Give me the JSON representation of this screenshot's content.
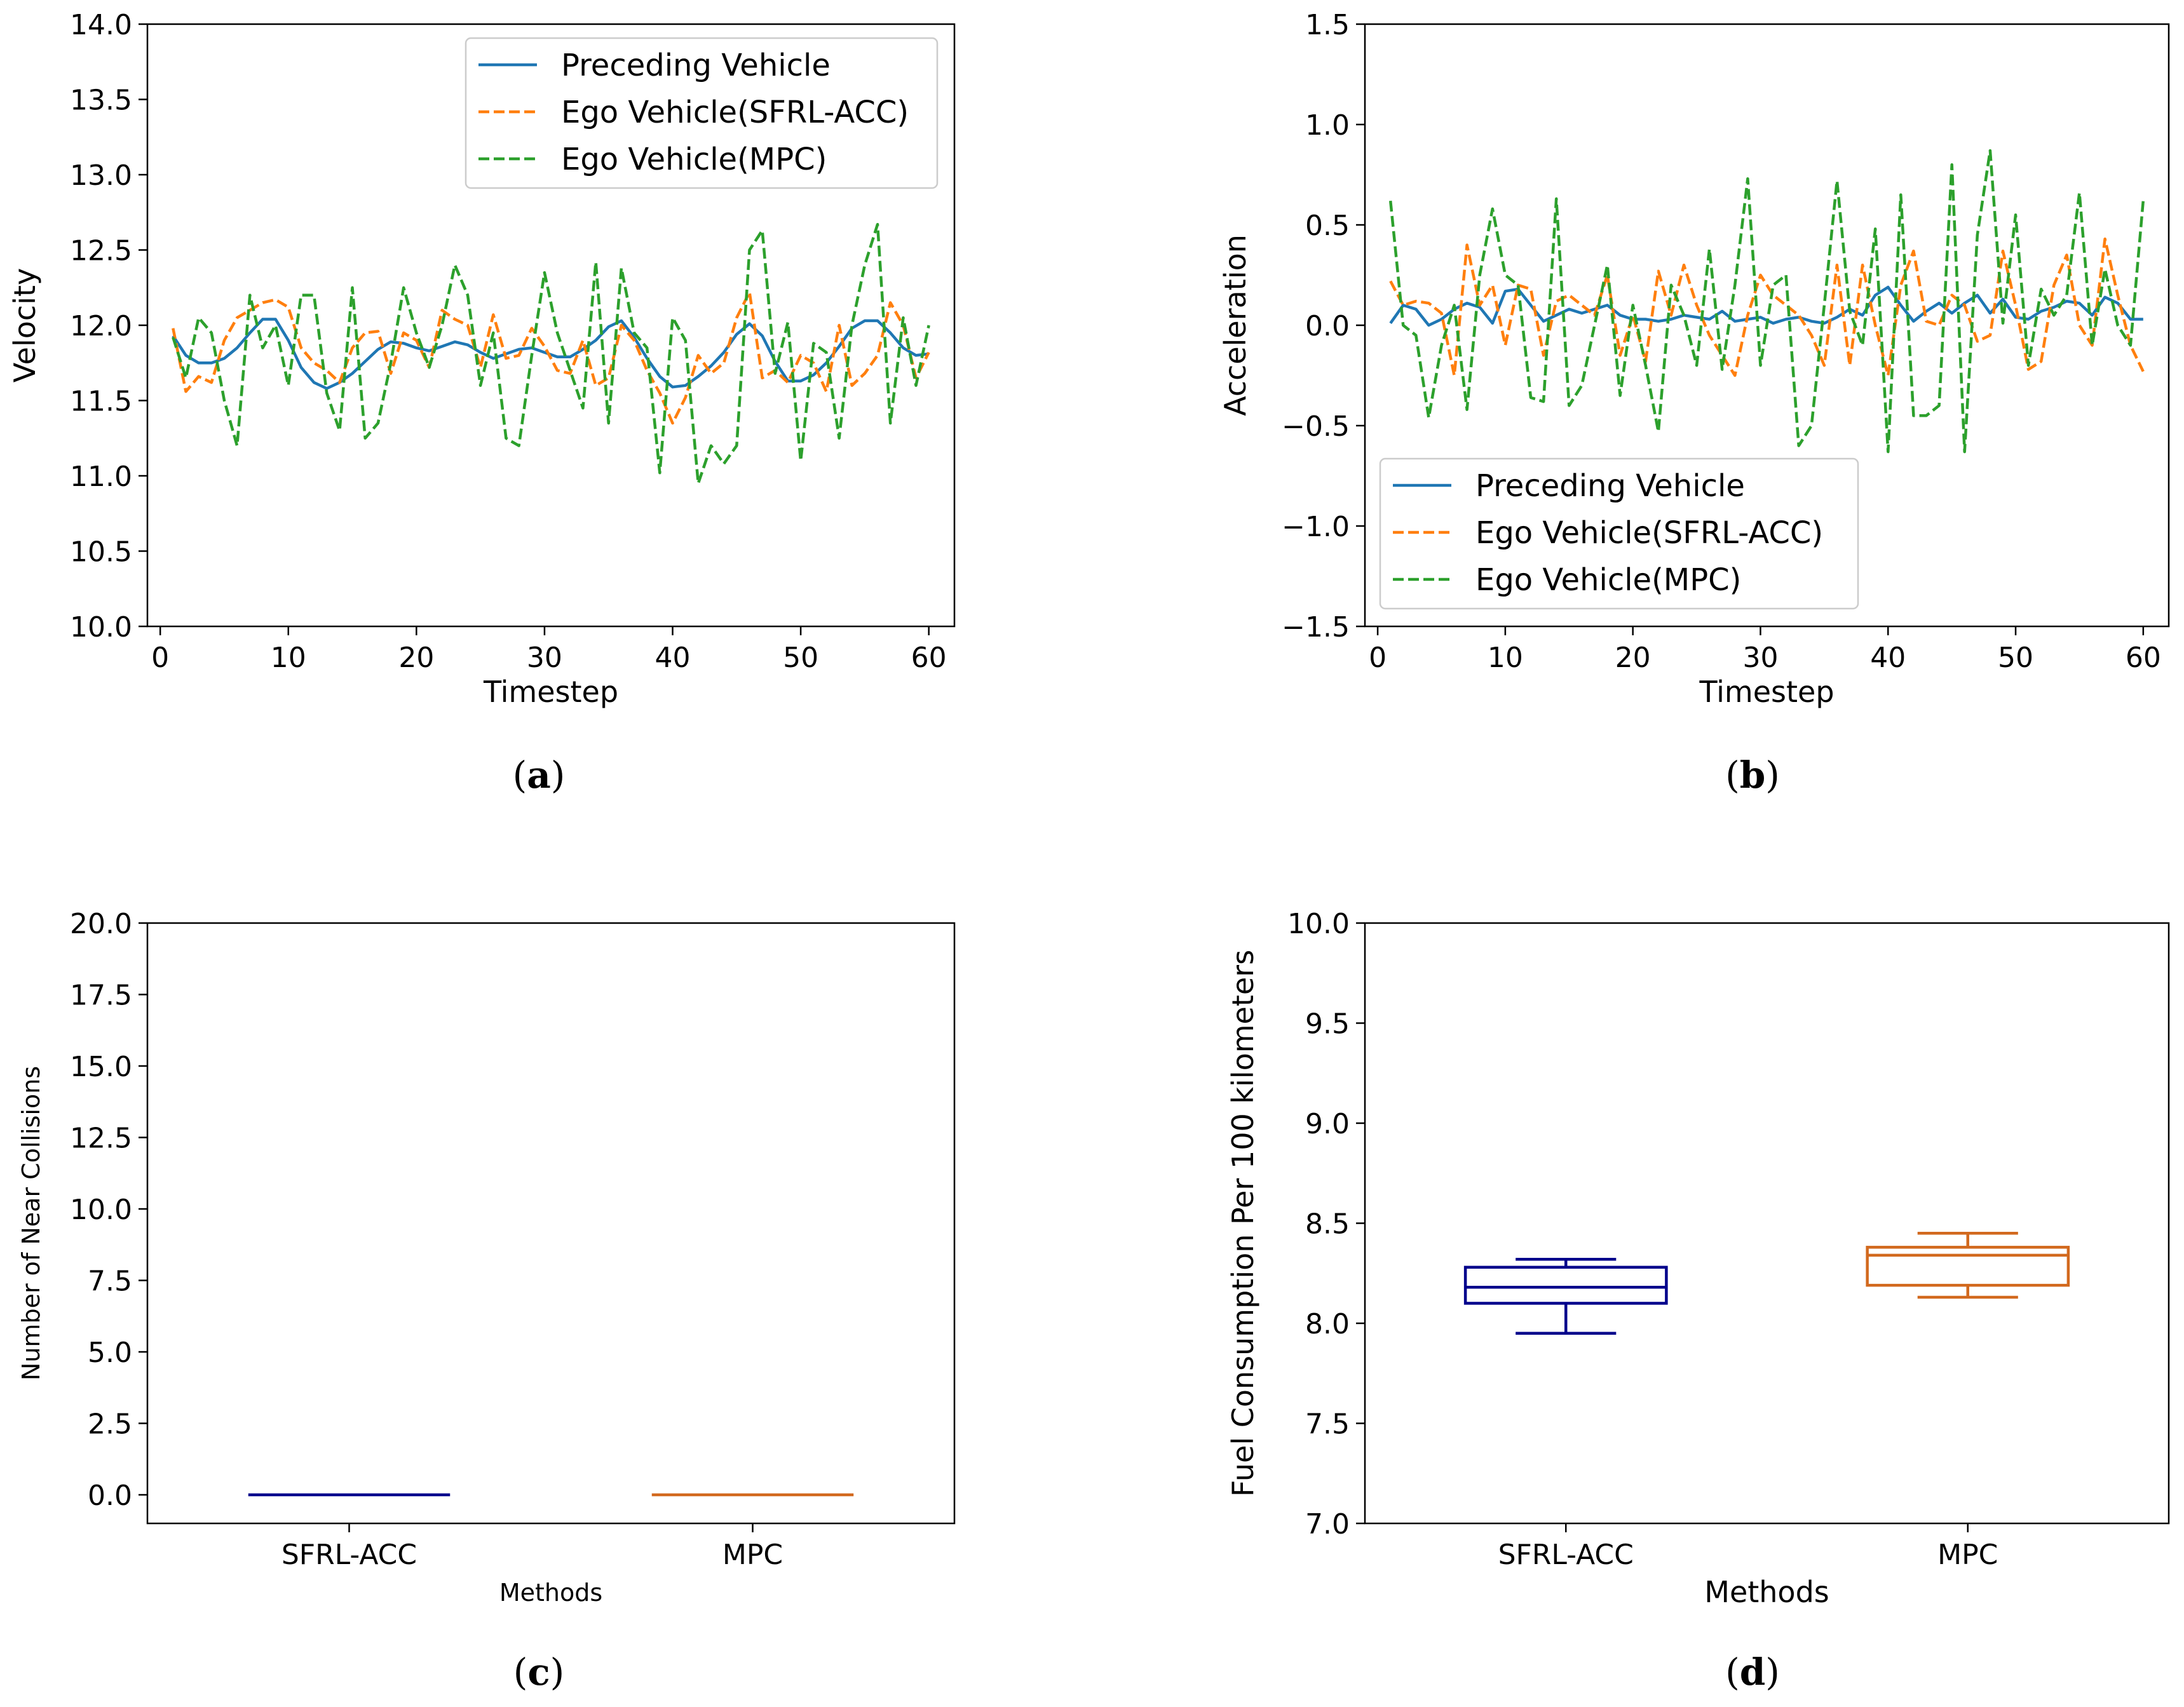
{
  "chart_data": [
    {
      "panel": "(a)",
      "type": "line",
      "xlabel": "Timestep",
      "ylabel": "Velocity",
      "xlim": [
        -1,
        62
      ],
      "ylim": [
        10.0,
        14.0
      ],
      "xticks": [
        "0",
        "10",
        "20",
        "30",
        "40",
        "50",
        "60"
      ],
      "yticks": [
        "10.0",
        "10.5",
        "11.0",
        "11.5",
        "12.0",
        "12.5",
        "13.0",
        "13.5",
        "14.0"
      ],
      "legend_position": "top-right",
      "x": [
        1,
        2,
        3,
        4,
        5,
        6,
        7,
        8,
        9,
        10,
        11,
        12,
        13,
        14,
        15,
        16,
        17,
        18,
        19,
        20,
        21,
        22,
        23,
        24,
        25,
        26,
        27,
        28,
        29,
        30,
        31,
        32,
        33,
        34,
        35,
        36,
        37,
        38,
        39,
        40,
        41,
        42,
        43,
        44,
        45,
        46,
        47,
        48,
        49,
        50,
        51,
        52,
        53,
        54,
        55,
        56,
        57,
        58,
        59,
        60
      ],
      "series": [
        {
          "name": "Preceding Vehicle",
          "color": "#1f77b4",
          "style": "solid",
          "values": [
            11.93,
            11.8,
            11.75,
            11.75,
            11.78,
            11.85,
            11.95,
            12.04,
            12.04,
            11.9,
            11.72,
            11.62,
            11.58,
            11.62,
            11.68,
            11.76,
            11.84,
            11.89,
            11.88,
            11.85,
            11.83,
            11.86,
            11.89,
            11.87,
            11.82,
            11.78,
            11.81,
            11.84,
            11.85,
            11.82,
            11.79,
            11.79,
            11.84,
            11.9,
            11.99,
            12.03,
            11.92,
            11.78,
            11.66,
            11.59,
            11.6,
            11.66,
            11.73,
            11.82,
            11.94,
            12.01,
            11.93,
            11.76,
            11.63,
            11.63,
            11.67,
            11.75,
            11.86,
            11.98,
            12.03,
            12.03,
            11.95,
            11.85,
            11.8,
            11.81
          ]
        },
        {
          "name": "Ego Vehicle(SFRL-ACC)",
          "color": "#ff7f0e",
          "style": "dashed",
          "values": [
            11.98,
            11.56,
            11.66,
            11.62,
            11.9,
            12.05,
            12.1,
            12.15,
            12.17,
            12.12,
            11.85,
            11.75,
            11.7,
            11.62,
            11.85,
            11.95,
            11.96,
            11.68,
            11.95,
            11.9,
            11.72,
            12.1,
            12.04,
            12.0,
            11.72,
            12.07,
            11.78,
            11.8,
            11.98,
            11.86,
            11.7,
            11.68,
            11.9,
            11.6,
            11.65,
            12.0,
            11.9,
            11.7,
            11.55,
            11.35,
            11.52,
            11.8,
            11.68,
            11.75,
            12.05,
            12.22,
            11.65,
            11.7,
            11.62,
            11.8,
            11.75,
            11.56,
            12.0,
            11.6,
            11.68,
            11.8,
            12.15,
            12.0,
            11.65,
            11.82
          ]
        },
        {
          "name": "Ego Vehicle(MPC)",
          "color": "#2ca02c",
          "style": "dashed",
          "values": [
            11.92,
            11.65,
            12.05,
            11.95,
            11.5,
            11.2,
            12.2,
            11.85,
            12.0,
            11.6,
            12.2,
            12.2,
            11.55,
            11.3,
            12.25,
            11.25,
            11.35,
            11.75,
            12.25,
            11.95,
            11.72,
            12.0,
            12.4,
            12.2,
            11.6,
            11.95,
            11.25,
            11.2,
            11.8,
            12.35,
            11.95,
            11.7,
            11.45,
            12.42,
            11.35,
            12.38,
            11.95,
            11.85,
            11.02,
            12.05,
            11.9,
            10.95,
            11.2,
            11.08,
            11.2,
            12.5,
            12.63,
            11.68,
            12.02,
            11.1,
            11.88,
            11.82,
            11.25,
            12.0,
            12.4,
            12.67,
            11.35,
            12.05,
            11.6,
            12.0
          ]
        }
      ]
    },
    {
      "panel": "(b)",
      "type": "line",
      "xlabel": "Timestep",
      "ylabel": "Acceleration",
      "xlim": [
        -1,
        62
      ],
      "ylim": [
        -1.5,
        1.5
      ],
      "xticks": [
        "0",
        "10",
        "20",
        "30",
        "40",
        "50",
        "60"
      ],
      "yticks": [
        "−1.5",
        "−1.0",
        "−0.5",
        "0.0",
        "0.5",
        "1.0",
        "1.5"
      ],
      "legend_position": "bottom-left",
      "x": [
        1,
        2,
        3,
        4,
        5,
        6,
        7,
        8,
        9,
        10,
        11,
        12,
        13,
        14,
        15,
        16,
        17,
        18,
        19,
        20,
        21,
        22,
        23,
        24,
        25,
        26,
        27,
        28,
        29,
        30,
        31,
        32,
        33,
        34,
        35,
        36,
        37,
        38,
        39,
        40,
        41,
        42,
        43,
        44,
        45,
        46,
        47,
        48,
        49,
        50,
        51,
        52,
        53,
        54,
        55,
        56,
        57,
        58,
        59,
        60
      ],
      "series": [
        {
          "name": "Preceding Vehicle",
          "color": "#1f77b4",
          "style": "solid",
          "values": [
            0.01,
            0.1,
            0.08,
            0.0,
            0.03,
            0.08,
            0.11,
            0.09,
            0.01,
            0.17,
            0.18,
            0.1,
            0.02,
            0.05,
            0.08,
            0.06,
            0.08,
            0.1,
            0.05,
            0.03,
            0.03,
            0.02,
            0.03,
            0.05,
            0.04,
            0.03,
            0.07,
            0.02,
            0.03,
            0.04,
            0.01,
            0.03,
            0.04,
            0.02,
            0.01,
            0.04,
            0.08,
            0.05,
            0.15,
            0.19,
            0.1,
            0.02,
            0.07,
            0.11,
            0.06,
            0.11,
            0.15,
            0.06,
            0.13,
            0.04,
            0.03,
            0.07,
            0.09,
            0.12,
            0.11,
            0.05,
            0.14,
            0.11,
            0.03,
            0.03
          ]
        },
        {
          "name": "Ego Vehicle(SFRL-ACC)",
          "color": "#ff7f0e",
          "style": "dashed",
          "values": [
            0.22,
            0.1,
            0.12,
            0.11,
            0.06,
            -0.25,
            0.4,
            0.1,
            0.2,
            -0.1,
            0.2,
            0.18,
            -0.15,
            0.12,
            0.15,
            0.1,
            0.05,
            0.25,
            -0.15,
            0.05,
            -0.18,
            0.27,
            0.05,
            0.3,
            0.1,
            -0.05,
            -0.15,
            -0.25,
            0.05,
            0.25,
            0.15,
            0.1,
            0.05,
            -0.05,
            -0.2,
            0.3,
            -0.2,
            0.3,
            0.0,
            -0.25,
            0.2,
            0.37,
            0.02,
            0.0,
            0.15,
            0.1,
            -0.08,
            -0.05,
            0.37,
            0.1,
            -0.22,
            -0.18,
            0.2,
            0.35,
            0.0,
            -0.1,
            0.43,
            0.15,
            -0.1,
            -0.23
          ]
        },
        {
          "name": "Ego Vehicle(MPC)",
          "color": "#2ca02c",
          "style": "dashed",
          "values": [
            0.62,
            0.0,
            -0.05,
            -0.46,
            -0.1,
            0.1,
            -0.42,
            0.25,
            0.58,
            0.25,
            0.2,
            -0.36,
            -0.38,
            0.63,
            -0.4,
            -0.3,
            0.0,
            0.3,
            -0.35,
            0.1,
            -0.2,
            -0.53,
            0.2,
            0.05,
            -0.2,
            0.38,
            -0.22,
            0.2,
            0.73,
            -0.2,
            0.2,
            0.25,
            -0.6,
            -0.5,
            0.1,
            0.72,
            0.07,
            -0.1,
            0.48,
            -0.63,
            0.65,
            -0.45,
            -0.45,
            -0.4,
            0.8,
            -0.63,
            0.45,
            0.87,
            0.01,
            0.55,
            -0.2,
            0.18,
            0.05,
            0.15,
            0.66,
            -0.1,
            0.28,
            0.0,
            -0.1,
            0.62
          ]
        }
      ]
    },
    {
      "panel": "(c)",
      "type": "box",
      "xlabel": "Methods",
      "ylabel": "Number of Near Collisions",
      "ylim": [
        -1.0,
        20.0
      ],
      "yticks": [
        "0.0",
        "2.5",
        "5.0",
        "7.5",
        "10.0",
        "12.5",
        "15.0",
        "17.5",
        "20.0"
      ],
      "categories": [
        "SFRL-ACC",
        "MPC"
      ],
      "boxes": [
        {
          "name": "SFRL-ACC",
          "color": "#00008b",
          "min": 0,
          "q1": 0,
          "median": 0,
          "q3": 0,
          "max": 0
        },
        {
          "name": "MPC",
          "color": "#d2691e",
          "min": 0,
          "q1": 0,
          "median": 0,
          "q3": 0,
          "max": 0
        }
      ]
    },
    {
      "panel": "(d)",
      "type": "box",
      "xlabel": "Methods",
      "ylabel": "Fuel Consumption Per 100 kilometers",
      "ylim": [
        7.0,
        10.0
      ],
      "yticks": [
        "7.0",
        "7.5",
        "8.0",
        "8.5",
        "9.0",
        "9.5",
        "10.0"
      ],
      "categories": [
        "SFRL-ACC",
        "MPC"
      ],
      "boxes": [
        {
          "name": "SFRL-ACC",
          "color": "#00008b",
          "min": 7.95,
          "q1": 8.1,
          "median": 8.18,
          "q3": 8.28,
          "max": 8.32
        },
        {
          "name": "MPC",
          "color": "#d2691e",
          "min": 8.13,
          "q1": 8.19,
          "median": 8.34,
          "q3": 8.38,
          "max": 8.45
        }
      ]
    }
  ]
}
